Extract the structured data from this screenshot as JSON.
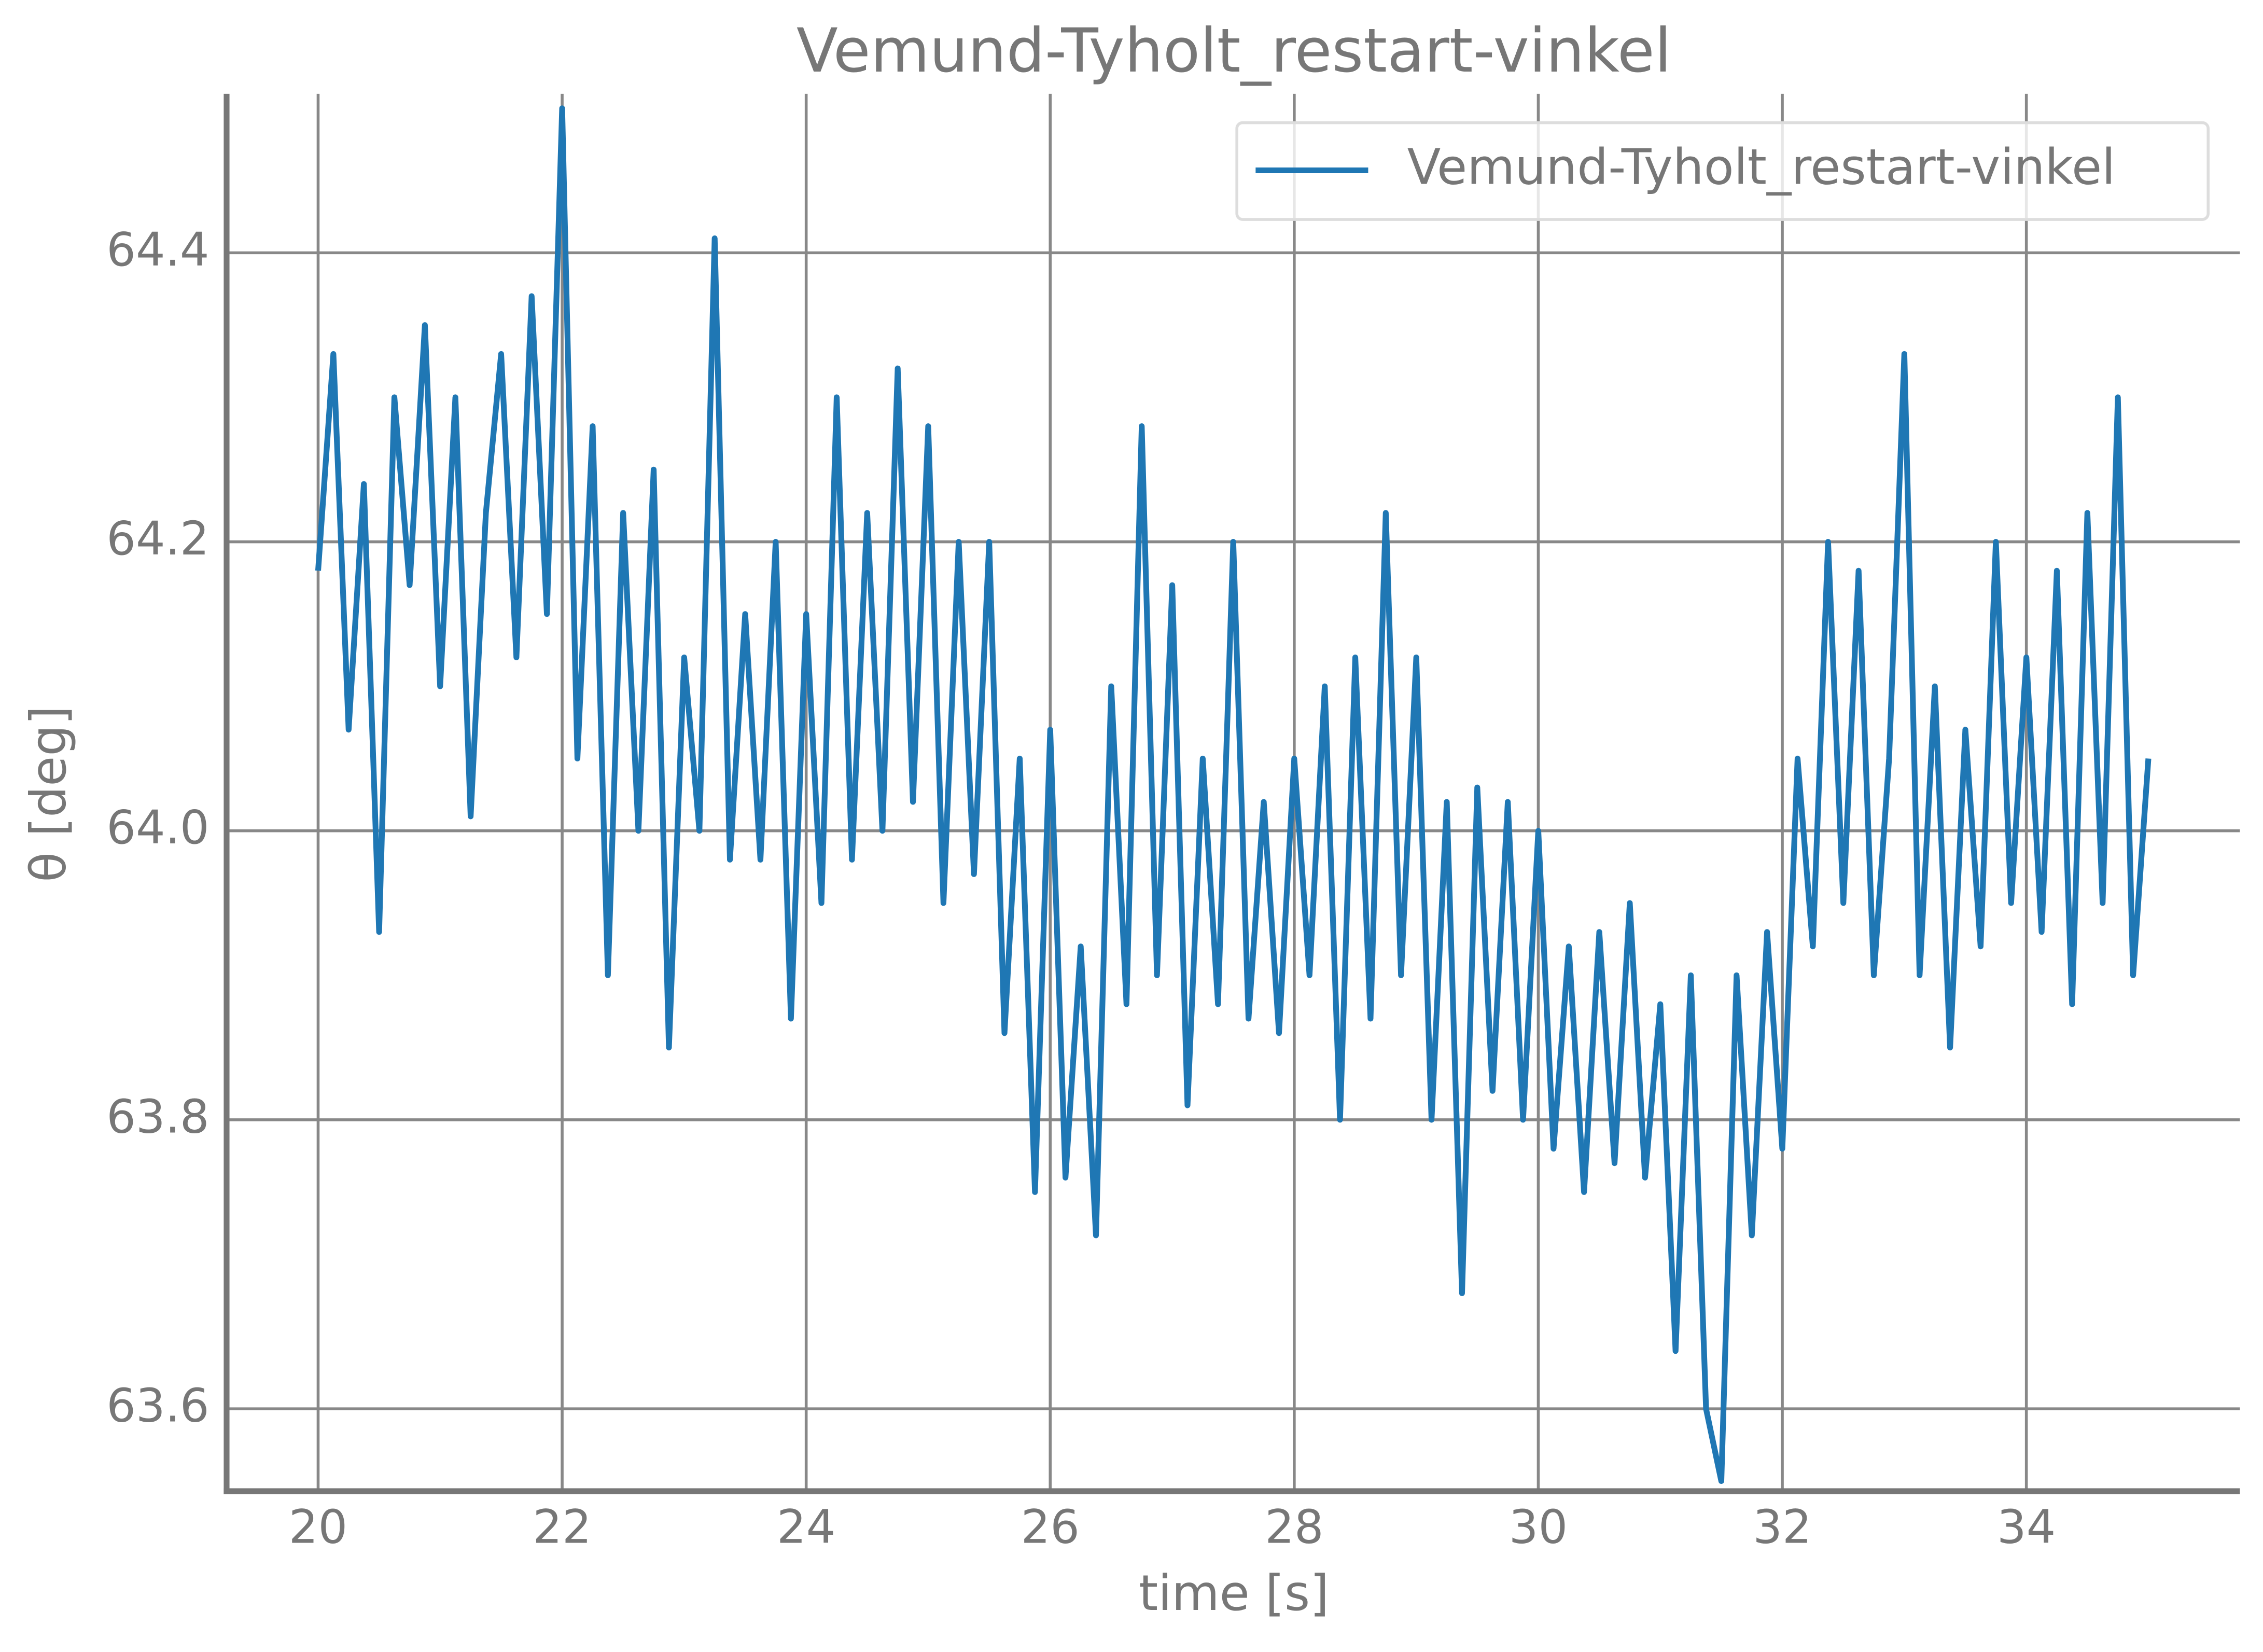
{
  "chart_data": {
    "type": "line",
    "title": "Vemund-Tyholt_restart-vinkel",
    "x_label": "time [s]",
    "y_label": "θ [deg]",
    "x": [
      20.0,
      20.125,
      20.25,
      20.375,
      20.5,
      20.625,
      20.75,
      20.875,
      21.0,
      21.125,
      21.25,
      21.375,
      21.5,
      21.625,
      21.75,
      21.875,
      22.0,
      22.125,
      22.25,
      22.375,
      22.5,
      22.625,
      22.75,
      22.875,
      23.0,
      23.125,
      23.25,
      23.375,
      23.5,
      23.625,
      23.75,
      23.875,
      24.0,
      24.125,
      24.25,
      24.375,
      24.5,
      24.625,
      24.75,
      24.875,
      25.0,
      25.125,
      25.25,
      25.375,
      25.5,
      25.625,
      25.75,
      25.875,
      26.0,
      26.125,
      26.25,
      26.375,
      26.5,
      26.625,
      26.75,
      26.875,
      27.0,
      27.125,
      27.25,
      27.375,
      27.5,
      27.625,
      27.75,
      27.875,
      28.0,
      28.125,
      28.25,
      28.375,
      28.5,
      28.625,
      28.75,
      28.875,
      29.0,
      29.125,
      29.25,
      29.375,
      29.5,
      29.625,
      29.75,
      29.875,
      30.0,
      30.125,
      30.25,
      30.375,
      30.5,
      30.625,
      30.75,
      30.875,
      31.0,
      31.125,
      31.25,
      31.375,
      31.5,
      31.625,
      31.75,
      31.875,
      32.0,
      32.125,
      32.25,
      32.375,
      32.5,
      32.625,
      32.75,
      32.875,
      33.0,
      33.125,
      33.25,
      33.375,
      33.5,
      33.625,
      33.75,
      33.875,
      34.0,
      34.125,
      34.25,
      34.375,
      34.5,
      34.625,
      34.75,
      34.875,
      35.0
    ],
    "series": [
      {
        "name": "Vemund-Tyholt_restart-vinkel",
        "color": "#1f77b4",
        "values": [
          64.18,
          64.33,
          64.07,
          64.24,
          63.93,
          64.3,
          64.17,
          64.35,
          64.1,
          64.3,
          64.01,
          64.22,
          64.33,
          64.12,
          64.37,
          64.15,
          64.5,
          64.05,
          64.28,
          63.9,
          64.22,
          64.0,
          64.25,
          63.85,
          64.12,
          64.0,
          64.41,
          63.98,
          64.15,
          63.98,
          64.2,
          63.87,
          64.15,
          63.95,
          64.3,
          63.98,
          64.22,
          64.0,
          64.32,
          64.02,
          64.28,
          63.95,
          64.2,
          63.97,
          64.2,
          63.86,
          64.05,
          63.75,
          64.07,
          63.76,
          63.92,
          63.72,
          64.1,
          63.88,
          64.28,
          63.9,
          64.17,
          63.81,
          64.05,
          63.88,
          64.2,
          63.87,
          64.02,
          63.86,
          64.05,
          63.9,
          64.1,
          63.8,
          64.12,
          63.87,
          64.22,
          63.9,
          64.12,
          63.8,
          64.02,
          63.68,
          64.03,
          63.82,
          64.02,
          63.8,
          64.0,
          63.78,
          63.92,
          63.75,
          63.93,
          63.77,
          63.95,
          63.76,
          63.88,
          63.64,
          63.9,
          63.6,
          63.55,
          63.9,
          63.72,
          63.93,
          63.78,
          64.05,
          63.92,
          64.2,
          63.95,
          64.18,
          63.9,
          64.05,
          64.33,
          63.9,
          64.1,
          63.85,
          64.07,
          63.92,
          64.2,
          63.95,
          64.12,
          63.93,
          64.18,
          63.88,
          64.22,
          63.95,
          64.3,
          63.9,
          64.05
        ]
      }
    ],
    "xlim": [
      19.25,
      35.75
    ],
    "xticks": [
      20,
      22,
      24,
      26,
      28,
      30,
      32,
      34
    ],
    "ylim": [
      63.543,
      64.51
    ],
    "yticks": [
      63.6,
      63.8,
      {
        "value": 64,
        "label": "64.0"
      },
      64.2,
      64.4
    ],
    "grid": true,
    "legend": "upper right"
  }
}
